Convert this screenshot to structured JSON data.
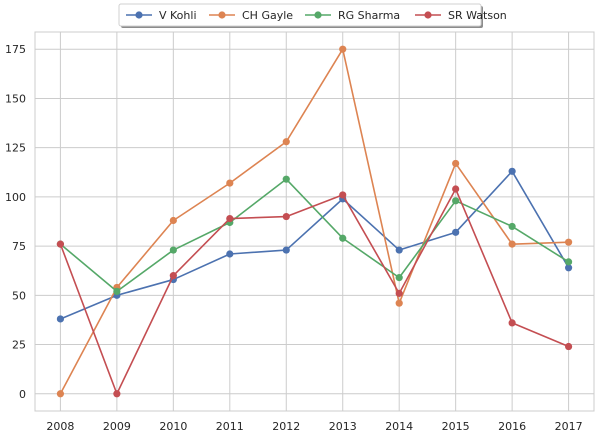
{
  "chart_data": {
    "type": "line",
    "title": "",
    "xlabel": "",
    "ylabel": "",
    "x": [
      2008,
      2009,
      2010,
      2011,
      2012,
      2013,
      2014,
      2015,
      2016,
      2017
    ],
    "xlim": [
      2007.55,
      2017.45
    ],
    "ylim": [
      -8.75,
      183.75
    ],
    "yticks": [
      0,
      25,
      50,
      75,
      100,
      125,
      150,
      175
    ],
    "grid": true,
    "legend_position": "top-center",
    "series": [
      {
        "name": "V Kohli",
        "color": "#4c72b0",
        "values": [
          38,
          50,
          58,
          71,
          73,
          99,
          73,
          82,
          113,
          64
        ]
      },
      {
        "name": "CH Gayle",
        "color": "#dd8452",
        "values": [
          0,
          54,
          88,
          107,
          128,
          175,
          46,
          117,
          76,
          77
        ]
      },
      {
        "name": "RG Sharma",
        "color": "#55a868",
        "values": [
          76,
          52,
          73,
          87,
          109,
          79,
          59,
          98,
          85,
          67
        ]
      },
      {
        "name": "SR Watson",
        "color": "#c44e52",
        "values": [
          76,
          0,
          60,
          89,
          90,
          101,
          51,
          104,
          36,
          24
        ]
      }
    ]
  }
}
